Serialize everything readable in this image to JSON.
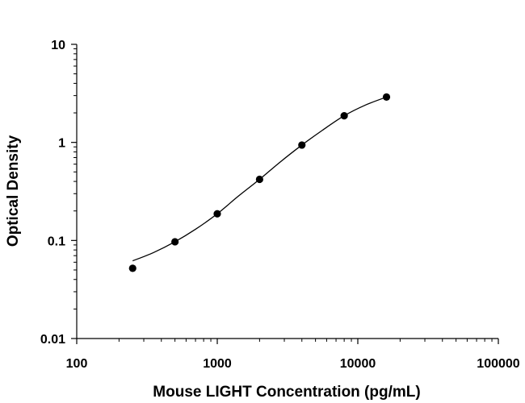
{
  "chart_data": {
    "type": "scatter",
    "title": "",
    "xlabel": "Mouse LIGHT Concentration (pg/mL)",
    "ylabel": "Optical Density",
    "x_scale": "log",
    "y_scale": "log",
    "xlim": [
      100,
      100000
    ],
    "ylim": [
      0.01,
      10
    ],
    "x_ticks": [
      "100",
      "1000",
      "10000",
      "100000"
    ],
    "y_ticks": [
      "10",
      "1",
      "0.1",
      "0.01"
    ],
    "grid": false,
    "legend": "none",
    "series": [
      {
        "x": [
          250,
          500,
          1000,
          2000,
          4000,
          8000,
          16000
        ],
        "y": [
          0.052,
          0.097,
          0.187,
          0.42,
          0.94,
          1.87,
          2.9
        ]
      }
    ],
    "fit_curve": {
      "x": [
        250,
        350,
        500,
        700,
        1000,
        1400,
        2000,
        2800,
        4000,
        5600,
        8000,
        11300,
        16000
      ],
      "y": [
        0.062,
        0.075,
        0.097,
        0.13,
        0.187,
        0.28,
        0.42,
        0.63,
        0.94,
        1.33,
        1.87,
        2.4,
        2.9
      ]
    },
    "colors": {
      "marker": "#000000",
      "line": "#000000",
      "axis": "#000000"
    }
  }
}
